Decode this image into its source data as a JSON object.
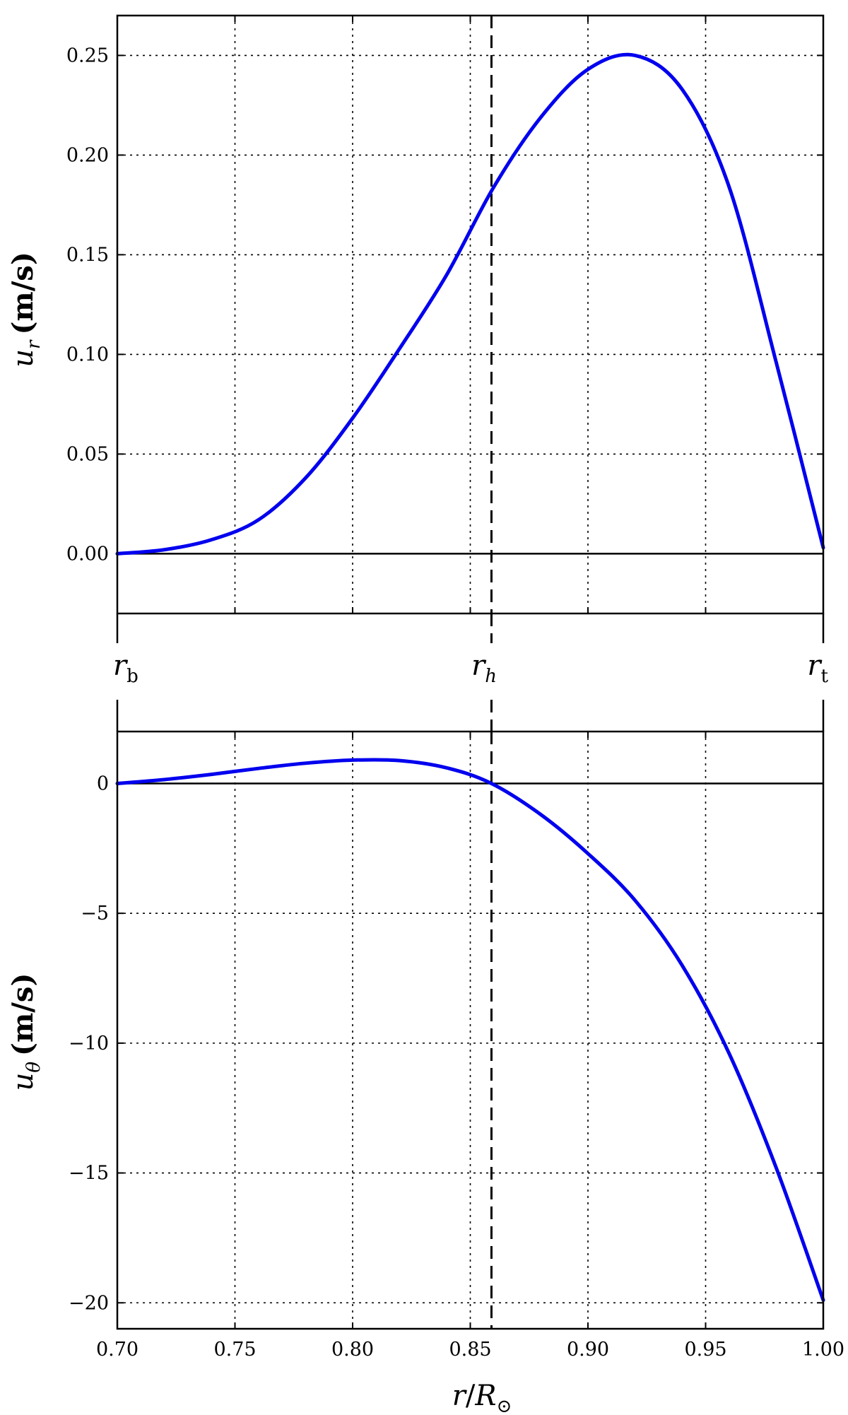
{
  "colors": {
    "series": "#0000ee",
    "axes": "#000000"
  },
  "markers": {
    "r_b": {
      "base": "r",
      "sub": "b",
      "x": 0.7
    },
    "r_h": {
      "base": "r",
      "sub": "h",
      "x": 0.859
    },
    "r_t": {
      "base": "r",
      "sub": "t",
      "x": 1.0
    }
  },
  "chart_data": [
    {
      "type": "line",
      "xlim": [
        0.7,
        1.0
      ],
      "ylim": [
        -0.03,
        0.27
      ],
      "grid": true,
      "ylabel": {
        "base": "u",
        "sub": "r",
        "unit": "(m/s)"
      },
      "xticks": [
        0.7,
        0.75,
        0.8,
        0.85,
        0.9,
        0.95,
        1.0
      ],
      "yticks": [
        0.0,
        0.05,
        0.1,
        0.15,
        0.2,
        0.25
      ],
      "ytick_labels": [
        "0.00",
        "0.05",
        "0.10",
        "0.15",
        "0.20",
        "0.25"
      ],
      "hline": 0,
      "vline": 0.859,
      "series": [
        {
          "x": [
            0.7,
            0.72,
            0.74,
            0.76,
            0.78,
            0.8,
            0.82,
            0.84,
            0.86,
            0.88,
            0.9,
            0.92,
            0.94,
            0.96,
            0.98,
            1.0
          ],
          "y": [
            0.0,
            0.002,
            0.007,
            0.017,
            0.038,
            0.068,
            0.103,
            0.14,
            0.184,
            0.219,
            0.243,
            0.25,
            0.233,
            0.184,
            0.096,
            0.003
          ]
        }
      ]
    },
    {
      "type": "line",
      "xlim": [
        0.7,
        1.0
      ],
      "ylim": [
        -21,
        2
      ],
      "grid": true,
      "xlabel": {
        "base": "r",
        "sep": "/",
        "base2": "R",
        "sub2": "⊙"
      },
      "ylabel": {
        "base": "u",
        "sub": "θ",
        "unit": "(m/s)"
      },
      "xticks": [
        0.7,
        0.75,
        0.8,
        0.85,
        0.9,
        0.95,
        1.0
      ],
      "xtick_labels": [
        "0.70",
        "0.75",
        "0.80",
        "0.85",
        "0.90",
        "0.95",
        "1.00"
      ],
      "yticks": [
        0,
        -5,
        -10,
        -15,
        -20
      ],
      "ytick_labels": [
        "0",
        "−5",
        "−10",
        "−15",
        "−20"
      ],
      "hline": 0,
      "vline": 0.859,
      "series": [
        {
          "x": [
            0.7,
            0.72,
            0.74,
            0.76,
            0.78,
            0.8,
            0.82,
            0.84,
            0.859,
            0.88,
            0.9,
            0.92,
            0.94,
            0.96,
            0.98,
            1.0
          ],
          "y": [
            0.0,
            0.15,
            0.35,
            0.58,
            0.78,
            0.9,
            0.88,
            0.6,
            0.0,
            -1.2,
            -2.7,
            -4.5,
            -7.0,
            -10.4,
            -14.8,
            -19.9
          ]
        }
      ]
    }
  ]
}
